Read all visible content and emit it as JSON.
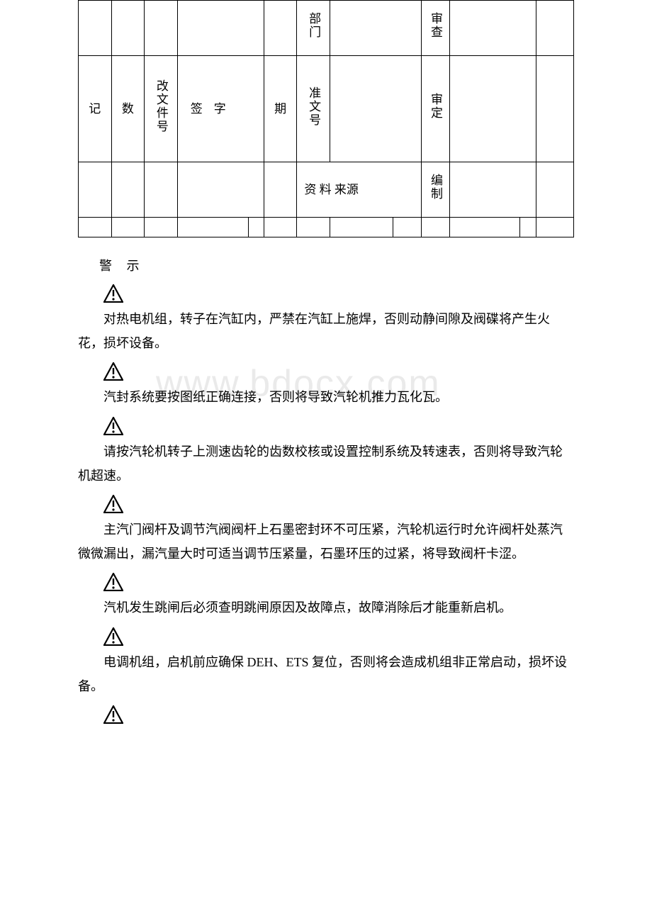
{
  "table": {
    "r1c5": "部门",
    "r1c8": "审查",
    "r2c1": "记",
    "r2c2": "数",
    "r2c3": "改文件号",
    "r2c4": "签字",
    "r2c5": "期",
    "r2c6": "准文号",
    "r2c8": "审定",
    "r3cmerge": "资 料 来源",
    "r3c8": "编制"
  },
  "heading": "警 示",
  "watermark": "www.bdocx.com",
  "warnings": [
    "对热电机组，转子在汽缸内，严禁在汽缸上施焊，否则动静间隙及阀碟将产生火花，损坏设备。",
    "汽封系统要按图纸正确连接，否则将导致汽轮机推力瓦化瓦。",
    "请按汽轮机转子上测速齿轮的齿数校核或设置控制系统及转速表，否则将导致汽轮机超速。",
    "主汽门阀杆及调节汽阀阀杆上石墨密封环不可压紧，汽轮机运行时允许阀杆处蒸汽微微漏出，漏汽量大时可适当调节压紧量，石墨环压的过紧，将导致阀杆卡涩。",
    "汽机发生跳闸后必须查明跳闸原因及故障点，故障消除后才能重新启机。",
    "电调机组，启机前应确保 DEH、ETS 复位，否则将会造成机组非正常启动，损坏设备。"
  ],
  "colors": {
    "text": "#000000",
    "watermark": "#eaeaea",
    "border": "#000000"
  }
}
